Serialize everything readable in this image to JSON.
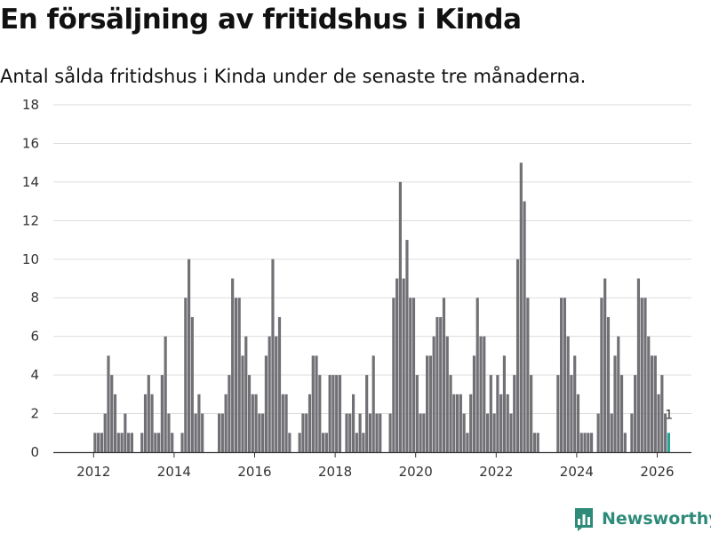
{
  "colors": {
    "bar": "#717075",
    "highlight": "#2aa198",
    "grid": "#dddddd",
    "axis": "#333333",
    "brand": "#2e8b7a"
  },
  "brand": {
    "name": "Newsworthy",
    "icon": "bar-chart-logo-icon"
  },
  "chart_data": {
    "type": "bar",
    "title": "En försäljning av fritidshus i Kinda",
    "subtitle": "Antal sålda fritidshus i Kinda under de senaste tre månaderna.",
    "xlabel": "",
    "ylabel": "",
    "ylim": [
      0,
      18
    ],
    "yticks": [
      0,
      2,
      4,
      6,
      8,
      10,
      12,
      14,
      16,
      18
    ],
    "xticks": [
      "2012",
      "2014",
      "2016",
      "2018",
      "2020",
      "2022",
      "2024",
      "2026"
    ],
    "start": "2012-01",
    "values": [
      1,
      1,
      1,
      2,
      5,
      4,
      3,
      1,
      1,
      2,
      1,
      1,
      0,
      0,
      1,
      3,
      4,
      3,
      1,
      1,
      4,
      6,
      2,
      1,
      0,
      0,
      1,
      8,
      10,
      7,
      2,
      3,
      2,
      0,
      0,
      0,
      0,
      2,
      2,
      3,
      4,
      9,
      8,
      8,
      5,
      6,
      4,
      3,
      3,
      2,
      2,
      5,
      6,
      10,
      6,
      7,
      3,
      3,
      1,
      0,
      0,
      1,
      2,
      2,
      3,
      5,
      5,
      4,
      1,
      1,
      4,
      4,
      4,
      4,
      0,
      2,
      2,
      3,
      1,
      2,
      1,
      4,
      2,
      5,
      2,
      2,
      0,
      0,
      2,
      8,
      9,
      14,
      9,
      11,
      8,
      8,
      4,
      2,
      2,
      5,
      5,
      6,
      7,
      7,
      8,
      6,
      4,
      3,
      3,
      3,
      2,
      1,
      3,
      5,
      8,
      6,
      6,
      2,
      4,
      2,
      4,
      3,
      5,
      3,
      2,
      4,
      10,
      15,
      13,
      8,
      4,
      1,
      1,
      0,
      0,
      0,
      0,
      0,
      4,
      8,
      8,
      6,
      4,
      5,
      3,
      1,
      1,
      1,
      1,
      0,
      2,
      8,
      9,
      7,
      2,
      5,
      6,
      4,
      1,
      0,
      2,
      4,
      9,
      8,
      8,
      6,
      5,
      5,
      3,
      4,
      2,
      1
    ],
    "highlight_last": true,
    "annotations": [
      {
        "index": "last",
        "text": "1"
      }
    ]
  }
}
